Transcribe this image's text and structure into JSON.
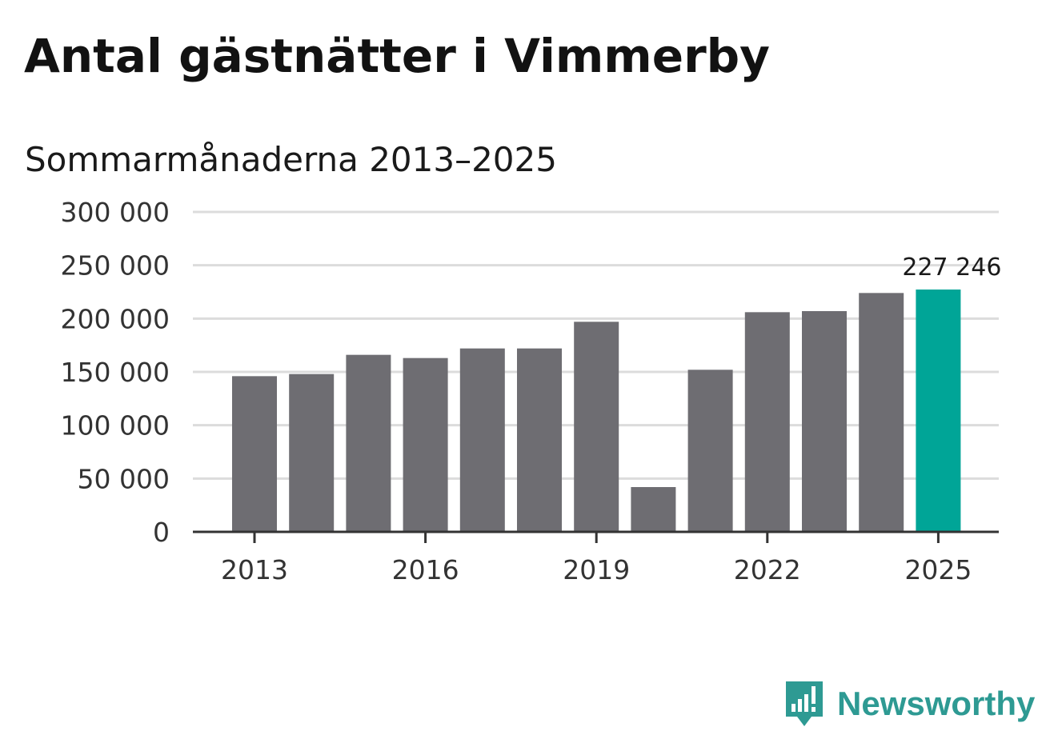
{
  "title": "Antal gästnätter i Vimmerby",
  "subtitle": "Sommarmånaderna 2013–2025",
  "colors": {
    "bar": "#6e6d72",
    "highlight": "#00a597",
    "grid": "#dcdcdc",
    "axis": "#333333",
    "brand": "#2e9a93"
  },
  "brand": {
    "name": "Newsworthy",
    "icon": "newsworthy-logo-icon"
  },
  "chart_data": {
    "type": "bar",
    "title": "Antal gästnätter i Vimmerby",
    "subtitle": "Sommarmånaderna 2013–2025",
    "xlabel": "",
    "ylabel": "",
    "categories": [
      "2013",
      "2014",
      "2015",
      "2016",
      "2017",
      "2018",
      "2019",
      "2020",
      "2021",
      "2022",
      "2023",
      "2024",
      "2025"
    ],
    "values": [
      146000,
      148000,
      166000,
      163000,
      172000,
      172000,
      197000,
      42000,
      152000,
      206000,
      207000,
      224000,
      227246
    ],
    "highlight_index": 12,
    "data_labels": [
      {
        "index": 12,
        "text": "227 246"
      }
    ],
    "ylim": [
      0,
      300000
    ],
    "yticks": [
      0,
      50000,
      100000,
      150000,
      200000,
      250000,
      300000
    ],
    "ytick_labels": [
      "0",
      "50 000",
      "100 000",
      "150 000",
      "200 000",
      "250 000",
      "300 000"
    ],
    "xtick_labels": [
      "2013",
      "2016",
      "2019",
      "2022",
      "2025"
    ],
    "grid": true,
    "legend": "none"
  }
}
